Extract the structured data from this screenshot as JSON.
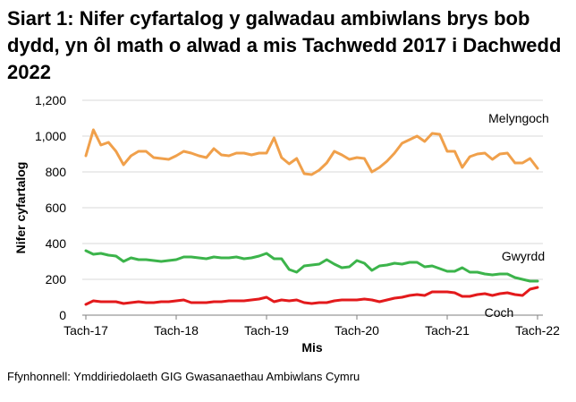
{
  "title": "Siart 1: Nifer cyfartalog y galwadau ambiwlans brys bob dydd, yn ôl math o alwad a mis Tachwedd 2017 i Dachwedd 2022",
  "source": "Ffynhonnell: Ymddiriedolaeth GIG Gwasanaethau Ambiwlans Cymru",
  "chart_data": {
    "type": "line",
    "xlabel": "Mis",
    "ylabel": "Nifer cyfartalog",
    "ylim": [
      0,
      1200
    ],
    "yticks": [
      0,
      200,
      400,
      600,
      800,
      1000,
      1200
    ],
    "ytick_labels": [
      "0",
      "200",
      "400",
      "600",
      "800",
      "1,000",
      "1,200"
    ],
    "x_tick_labels": [
      "Tach-17",
      "Tach-18",
      "Tach-19",
      "Tach-20",
      "Tach-21",
      "Tach-22"
    ],
    "x_tick_indices": [
      0,
      12,
      24,
      36,
      48,
      60
    ],
    "grid": "horizontal",
    "legend": "direct labels at right",
    "series": [
      {
        "name": "Melyngoch",
        "color": "#f0a04b",
        "values": [
          890,
          1035,
          950,
          965,
          915,
          840,
          890,
          915,
          915,
          880,
          875,
          870,
          890,
          915,
          905,
          890,
          880,
          930,
          895,
          890,
          905,
          905,
          895,
          905,
          905,
          990,
          880,
          845,
          875,
          790,
          785,
          810,
          850,
          915,
          895,
          870,
          880,
          875,
          800,
          825,
          860,
          905,
          960,
          980,
          1000,
          970,
          1015,
          1010,
          915,
          915,
          825,
          885,
          900,
          905,
          870,
          900,
          905,
          850,
          850,
          875,
          820
        ]
      },
      {
        "name": "Gwyrdd",
        "color": "#3cb44b",
        "values": [
          360,
          340,
          345,
          335,
          330,
          300,
          320,
          310,
          310,
          305,
          300,
          305,
          310,
          325,
          325,
          320,
          315,
          325,
          320,
          320,
          325,
          315,
          320,
          330,
          345,
          315,
          315,
          255,
          240,
          275,
          280,
          285,
          310,
          285,
          265,
          270,
          305,
          290,
          250,
          275,
          280,
          290,
          285,
          295,
          295,
          270,
          275,
          260,
          245,
          245,
          265,
          240,
          240,
          230,
          225,
          230,
          230,
          210,
          200,
          190,
          190
        ]
      },
      {
        "name": "Coch",
        "color": "#e31a1c",
        "values": [
          60,
          80,
          75,
          75,
          75,
          65,
          70,
          75,
          70,
          70,
          75,
          75,
          80,
          85,
          70,
          70,
          70,
          75,
          75,
          80,
          80,
          80,
          85,
          90,
          100,
          75,
          85,
          80,
          85,
          70,
          65,
          70,
          70,
          80,
          85,
          85,
          85,
          90,
          85,
          75,
          85,
          95,
          100,
          110,
          115,
          110,
          130,
          130,
          130,
          125,
          105,
          105,
          115,
          120,
          110,
          120,
          125,
          115,
          110,
          145,
          155
        ]
      }
    ]
  }
}
